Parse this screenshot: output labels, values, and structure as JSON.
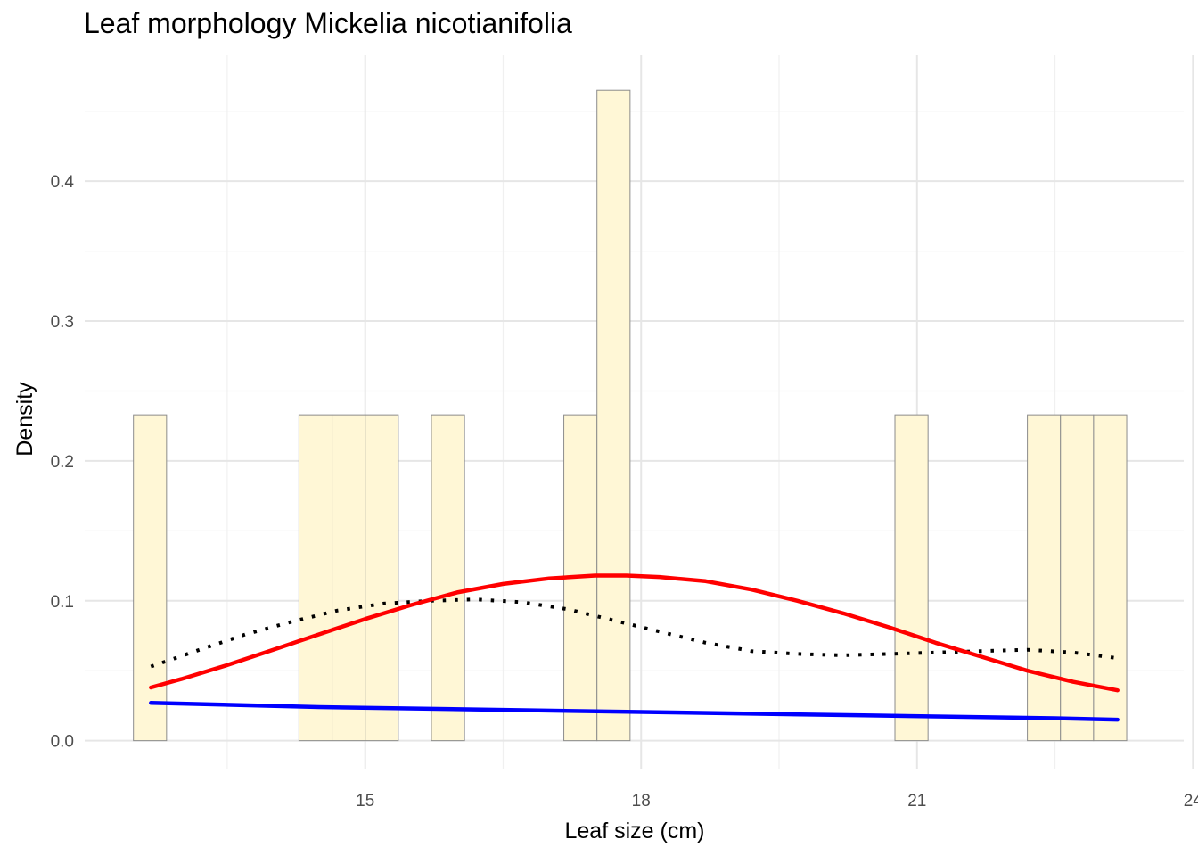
{
  "chart_data": {
    "type": "bar",
    "title": "Leaf morphology Mickelia nicotianifolia",
    "xlabel": "Leaf size (cm)",
    "ylabel": "Density",
    "xlim": [
      11.95,
      23.9
    ],
    "ylim": [
      -0.02,
      0.49
    ],
    "x_ticks": [
      15,
      18,
      21,
      24
    ],
    "y_ticks": [
      0.0,
      0.1,
      0.2,
      0.3,
      0.4
    ],
    "y_tick_labels": [
      "0.0",
      "0.1",
      "0.2",
      "0.3",
      "0.4"
    ],
    "x_tick_labels": [
      "15",
      "18",
      "21",
      "24"
    ],
    "grid": true,
    "histogram": {
      "fill": "#FFF7D6",
      "stroke": "#8c8c8c",
      "bins": [
        {
          "x0": 12.48,
          "x1": 12.84,
          "density": 0.233
        },
        {
          "x0": 14.28,
          "x1": 14.64,
          "density": 0.233
        },
        {
          "x0": 14.64,
          "x1": 15.0,
          "density": 0.233
        },
        {
          "x0": 15.0,
          "x1": 15.36,
          "density": 0.233
        },
        {
          "x0": 15.72,
          "x1": 16.08,
          "density": 0.233
        },
        {
          "x0": 17.16,
          "x1": 17.52,
          "density": 0.233
        },
        {
          "x0": 17.52,
          "x1": 17.88,
          "density": 0.465
        },
        {
          "x0": 20.76,
          "x1": 21.12,
          "density": 0.233
        },
        {
          "x0": 22.2,
          "x1": 22.56,
          "density": 0.233
        },
        {
          "x0": 22.56,
          "x1": 22.92,
          "density": 0.233
        },
        {
          "x0": 22.92,
          "x1": 23.28,
          "density": 0.233
        }
      ]
    },
    "series": [
      {
        "type": "line",
        "color": "#000000",
        "style": "dotted",
        "x": [
          12.67,
          13.2,
          13.7,
          14.2,
          14.7,
          15.2,
          15.7,
          16.2,
          16.7,
          17.2,
          17.7,
          18.2,
          18.7,
          19.2,
          19.7,
          20.2,
          20.7,
          21.2,
          21.7,
          22.2,
          22.7,
          23.18
        ],
        "y": [
          0.053,
          0.065,
          0.076,
          0.085,
          0.093,
          0.098,
          0.1,
          0.101,
          0.099,
          0.094,
          0.086,
          0.078,
          0.07,
          0.064,
          0.062,
          0.061,
          0.062,
          0.063,
          0.064,
          0.065,
          0.063,
          0.059
        ]
      },
      {
        "type": "line",
        "color": "#FF0000",
        "style": "solid",
        "x": [
          12.67,
          13.0,
          13.5,
          14.0,
          14.5,
          15.0,
          15.5,
          16.0,
          16.5,
          17.0,
          17.5,
          17.84,
          18.2,
          18.7,
          19.2,
          19.7,
          20.2,
          20.7,
          21.2,
          21.7,
          22.2,
          22.7,
          23.18
        ],
        "y": [
          0.038,
          0.044,
          0.054,
          0.065,
          0.076,
          0.087,
          0.097,
          0.106,
          0.112,
          0.116,
          0.118,
          0.118,
          0.117,
          0.114,
          0.108,
          0.1,
          0.091,
          0.081,
          0.07,
          0.06,
          0.05,
          0.042,
          0.036
        ]
      },
      {
        "type": "line",
        "color": "#0000FF",
        "style": "solid",
        "x": [
          12.67,
          14.5,
          16.5,
          18.5,
          20.5,
          22.5,
          23.18
        ],
        "y": [
          0.027,
          0.024,
          0.022,
          0.02,
          0.018,
          0.016,
          0.015
        ]
      }
    ]
  }
}
